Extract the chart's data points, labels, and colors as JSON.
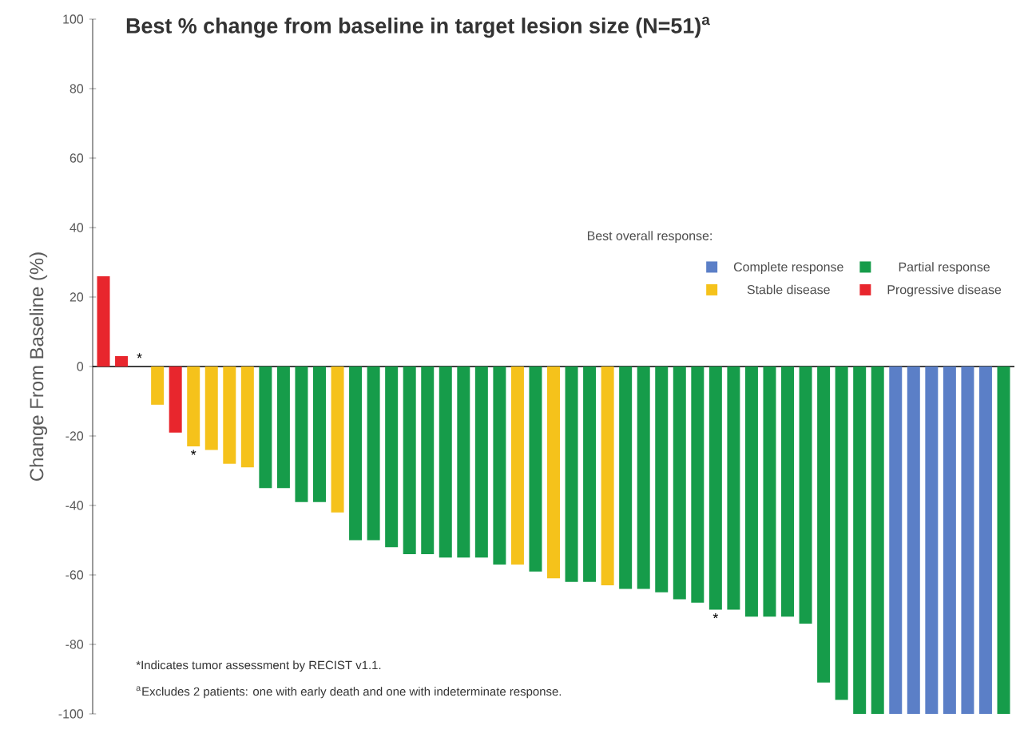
{
  "chart_data": {
    "type": "bar",
    "title": "Best % change from baseline in target lesion size (N=51)$^{a}$",
    "ylabel": "Change From Baseline (%)",
    "legend_title": "Best overall response:",
    "categories": [
      null,
      null,
      null,
      null,
      null,
      null,
      null,
      null,
      null,
      null,
      null,
      null,
      null,
      null,
      null,
      null,
      null,
      null,
      null,
      null,
      null,
      null,
      null,
      null,
      null,
      null,
      null,
      null,
      null,
      null,
      null,
      null,
      null,
      null,
      null,
      null,
      null,
      null,
      null,
      null,
      null,
      null,
      null,
      null,
      null,
      null,
      null,
      null,
      null,
      null,
      null
    ],
    "ylim": [
      -100,
      100
    ],
    "yticks": [
      -100,
      -80,
      -60,
      -40,
      -20,
      0,
      20,
      40,
      60,
      80,
      100
    ],
    "legend": "top right",
    "series": [
      {
        "name": "Complete response",
        "color": "#5b7fc7",
        "values": [
          null,
          null,
          null,
          null,
          null,
          null,
          null,
          null,
          null,
          null,
          null,
          null,
          null,
          null,
          null,
          null,
          null,
          null,
          null,
          null,
          null,
          null,
          null,
          null,
          null,
          null,
          null,
          null,
          null,
          null,
          null,
          null,
          null,
          null,
          null,
          null,
          null,
          null,
          null,
          null,
          null,
          null,
          null,
          null,
          -100,
          -100,
          -100,
          -100,
          -100,
          -100,
          null
        ]
      },
      {
        "name": "Partial response",
        "color": "#169c4a",
        "value_labels": [
          null,
          null,
          null,
          null,
          null,
          null,
          null,
          null,
          null,
          null,
          null,
          null,
          null,
          null,
          null,
          null,
          null,
          null,
          null,
          null,
          null,
          null,
          null,
          null,
          null,
          null,
          null,
          null,
          null,
          null,
          null,
          null,
          null,
          null,
          "*",
          null,
          null,
          null,
          null,
          null,
          null,
          null,
          null,
          null,
          null,
          null,
          null,
          null,
          null,
          null,
          null
        ],
        "values": [
          null,
          null,
          null,
          null,
          null,
          null,
          null,
          null,
          null,
          -35,
          -35,
          -39,
          -39,
          null,
          -50,
          -50,
          -52,
          -54,
          -54,
          -55,
          -55,
          -55,
          -57,
          null,
          -59,
          null,
          -62,
          -62,
          null,
          -64,
          -64,
          -65,
          -67,
          -68,
          -70,
          -70,
          -72,
          -72,
          -72,
          -74,
          -91,
          -96,
          -100,
          -100,
          null,
          null,
          null,
          null,
          null,
          null,
          -100
        ]
      },
      {
        "name": "Stable disease",
        "color": "#f5c21b",
        "value_labels": [
          null,
          null,
          "*",
          null,
          null,
          "*",
          null,
          null,
          null,
          null,
          null,
          null,
          null,
          null,
          null,
          null,
          null,
          null,
          null,
          null,
          null,
          null,
          null,
          null,
          null,
          null,
          null,
          null,
          null,
          null,
          null,
          null,
          null,
          null,
          null,
          null,
          null,
          null,
          null,
          null,
          null,
          null,
          null,
          null,
          null,
          null,
          null,
          null,
          null,
          null,
          null
        ],
        "values": [
          null,
          null,
          0,
          -11,
          null,
          -23,
          -24,
          -28,
          -29,
          null,
          null,
          null,
          null,
          -42,
          null,
          null,
          null,
          null,
          null,
          null,
          null,
          null,
          null,
          -57,
          null,
          -61,
          null,
          null,
          -63,
          null,
          null,
          null,
          null,
          null,
          null,
          null,
          null,
          null,
          null,
          null,
          null,
          null,
          null,
          null,
          null,
          null,
          null,
          null,
          null,
          null,
          null
        ]
      },
      {
        "name": "Progressive disease",
        "color": "#e8262d",
        "values": [
          26,
          3,
          null,
          null,
          -19,
          null,
          null,
          null,
          null,
          null,
          null,
          null,
          null,
          null,
          null,
          null,
          null,
          null,
          null,
          null,
          null,
          null,
          null,
          null,
          null,
          null,
          null,
          null,
          null,
          null,
          null,
          null,
          null,
          null,
          null,
          null,
          null,
          null,
          null,
          null,
          null,
          null,
          null,
          null,
          null,
          null,
          null,
          null,
          null,
          null,
          null
        ]
      }
    ],
    "annotations": [
      "*Indicates tumor assessment by RECIST v1.1.",
      "$^{a}$Excludes 2 patients: one with early death and one with indeterminate response."
    ]
  }
}
